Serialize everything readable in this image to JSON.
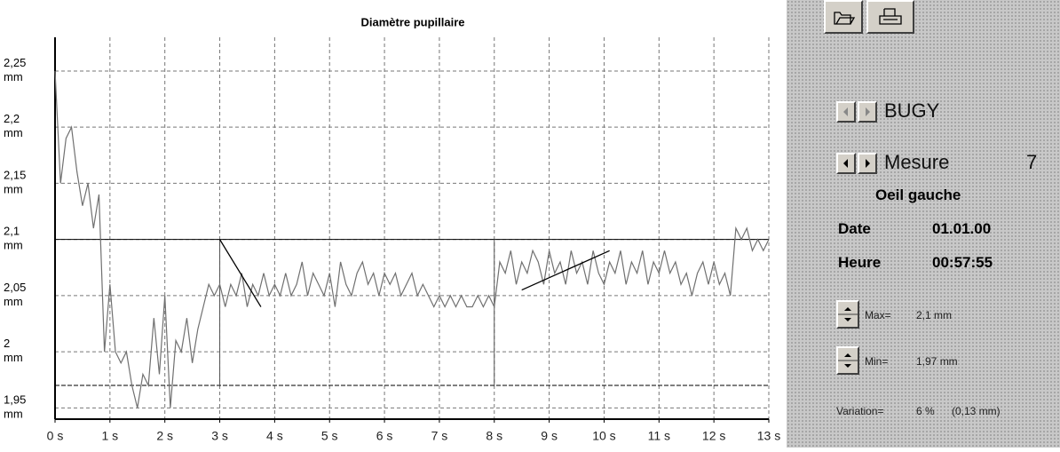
{
  "chart_data": {
    "type": "line",
    "title": "Diamètre pupillaire",
    "color": "#707070",
    "xlim": [
      0,
      13
    ],
    "ylim": [
      1.94,
      2.28
    ],
    "xticks": [
      {
        "value": 0,
        "label": "0 s"
      },
      {
        "value": 1,
        "label": "1 s"
      },
      {
        "value": 2,
        "label": "2 s"
      },
      {
        "value": 3,
        "label": "3 s"
      },
      {
        "value": 4,
        "label": "4 s"
      },
      {
        "value": 5,
        "label": "5 s"
      },
      {
        "value": 6,
        "label": "6 s"
      },
      {
        "value": 7,
        "label": "7 s"
      },
      {
        "value": 8,
        "label": "8 s"
      },
      {
        "value": 9,
        "label": "9 s"
      },
      {
        "value": 10,
        "label": "10 s"
      },
      {
        "value": 11,
        "label": "11 s"
      },
      {
        "value": 12,
        "label": "12 s"
      },
      {
        "value": 13,
        "label": "13 s"
      }
    ],
    "yticks": [
      {
        "value": 1.95,
        "label": "1,95 mm"
      },
      {
        "value": 2,
        "label": "2 mm"
      },
      {
        "value": 2.05,
        "label": "2,05 mm"
      },
      {
        "value": 2.1,
        "label": "2,1 mm"
      },
      {
        "value": 2.15,
        "label": "2,15 mm"
      },
      {
        "value": 2.2,
        "label": "2,2 mm"
      },
      {
        "value": 2.25,
        "label": "2,25 mm"
      }
    ],
    "grid": true,
    "x": [
      0,
      0.1,
      0.2,
      0.3,
      0.4,
      0.5,
      0.6,
      0.7,
      0.8,
      0.9,
      1,
      1.1,
      1.2,
      1.3,
      1.4,
      1.5,
      1.6,
      1.7,
      1.8,
      1.9,
      2,
      2.1,
      2.2,
      2.3,
      2.4,
      2.5,
      2.6,
      2.7,
      2.8,
      2.9,
      3,
      3.1,
      3.2,
      3.3,
      3.4,
      3.5,
      3.6,
      3.7,
      3.8,
      3.9,
      4,
      4.1,
      4.2,
      4.3,
      4.4,
      4.5,
      4.6,
      4.7,
      4.8,
      4.9,
      5,
      5.1,
      5.2,
      5.3,
      5.4,
      5.5,
      5.6,
      5.7,
      5.8,
      5.9,
      6,
      6.1,
      6.2,
      6.3,
      6.4,
      6.5,
      6.6,
      6.7,
      6.8,
      6.9,
      7,
      7.1,
      7.2,
      7.3,
      7.4,
      7.5,
      7.6,
      7.7,
      7.8,
      7.9,
      8,
      8.1,
      8.2,
      8.3,
      8.4,
      8.5,
      8.6,
      8.7,
      8.8,
      8.9,
      9,
      9.1,
      9.2,
      9.3,
      9.4,
      9.5,
      9.6,
      9.7,
      9.8,
      9.9,
      10,
      10.1,
      10.2,
      10.3,
      10.4,
      10.5,
      10.6,
      10.7,
      10.8,
      10.9,
      11,
      11.1,
      11.2,
      11.3,
      11.4,
      11.5,
      11.6,
      11.7,
      11.8,
      11.9,
      12,
      12.1,
      12.2,
      12.3,
      12.4,
      12.5,
      12.6,
      12.7,
      12.8,
      12.9,
      13
    ],
    "values": [
      2.25,
      2.15,
      2.19,
      2.2,
      2.16,
      2.13,
      2.15,
      2.11,
      2.14,
      2.0,
      2.06,
      2.0,
      1.99,
      2.0,
      1.97,
      1.95,
      1.98,
      1.97,
      2.03,
      1.98,
      2.05,
      1.95,
      2.01,
      2.0,
      2.03,
      1.99,
      2.02,
      2.04,
      2.06,
      2.05,
      2.06,
      2.04,
      2.06,
      2.05,
      2.07,
      2.04,
      2.06,
      2.05,
      2.07,
      2.05,
      2.06,
      2.05,
      2.07,
      2.05,
      2.06,
      2.08,
      2.05,
      2.07,
      2.06,
      2.05,
      2.07,
      2.04,
      2.08,
      2.06,
      2.05,
      2.07,
      2.08,
      2.06,
      2.07,
      2.05,
      2.07,
      2.06,
      2.07,
      2.05,
      2.06,
      2.07,
      2.05,
      2.06,
      2.05,
      2.04,
      2.05,
      2.04,
      2.05,
      2.04,
      2.05,
      2.04,
      2.04,
      2.05,
      2.04,
      2.05,
      2.04,
      2.08,
      2.07,
      2.09,
      2.06,
      2.08,
      2.07,
      2.09,
      2.08,
      2.06,
      2.09,
      2.07,
      2.08,
      2.06,
      2.09,
      2.07,
      2.08,
      2.06,
      2.09,
      2.07,
      2.06,
      2.08,
      2.07,
      2.09,
      2.06,
      2.08,
      2.07,
      2.09,
      2.06,
      2.08,
      2.07,
      2.09,
      2.07,
      2.08,
      2.06,
      2.07,
      2.05,
      2.07,
      2.08,
      2.06,
      2.08,
      2.06,
      2.07,
      2.05,
      2.11,
      2.1,
      2.11,
      2.09,
      2.1,
      2.09,
      2.1
    ],
    "max_line": 2.1,
    "min_line": 1.97,
    "markers": [
      3,
      8
    ],
    "trend_lines": [
      {
        "x": [
          3,
          3.75
        ],
        "y": [
          2.1,
          2.04
        ]
      },
      {
        "x": [
          8.5,
          10.1
        ],
        "y": [
          2.055,
          2.09
        ]
      }
    ]
  },
  "panel": {
    "subject": "BUGY",
    "measure_label": "Mesure",
    "measure": "7",
    "eye": "Oeil gauche",
    "date_label": "Date",
    "date": "01.01.00",
    "time_label": "Heure",
    "time": "00:57:55",
    "max_label": "Max=",
    "max": "2,1 mm",
    "min_label": "Min=",
    "min": "1,97 mm",
    "variation_label": "Variation=",
    "variation": "6 %",
    "variation_mm": "(0,13 mm)"
  }
}
